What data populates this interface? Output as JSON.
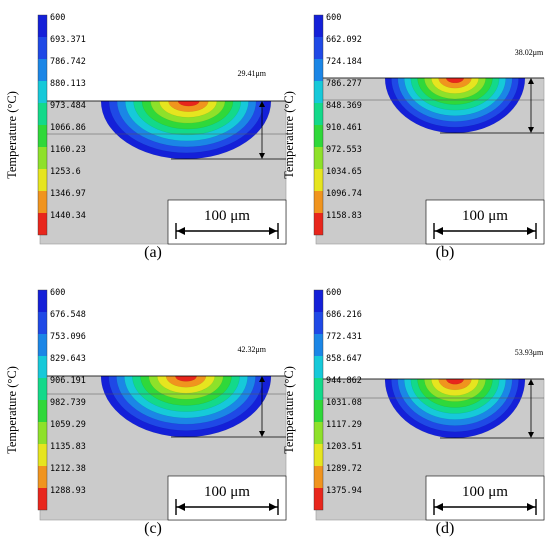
{
  "figure": {
    "background": "#ffffff",
    "substrate_color": "#cbcbcb",
    "contour_colors": [
      "#1420d8",
      "#1f49e6",
      "#1b86e6",
      "#16c9d9",
      "#13d98a",
      "#2fd83a",
      "#8ee12a",
      "#e6e51f",
      "#f0941e",
      "#e8261c"
    ],
    "panels": [
      {
        "id": "a",
        "caption": "(a)",
        "y_label": "Temperature (°C)",
        "legend": [
          "600",
          "693.371",
          "786.742",
          "880.113",
          "973.484",
          "1066.86",
          "1160.23",
          "1253.6",
          "1346.97",
          "1440.34"
        ],
        "depth_label": "29.41μm",
        "depth_um": 29.41,
        "scale_bar_label": "100 μm",
        "scale_bar_um": 100
      },
      {
        "id": "b",
        "caption": "(b)",
        "y_label": "Temperature (°C)",
        "legend": [
          "600",
          "662.092",
          "724.184",
          "786.277",
          "848.369",
          "910.461",
          "972.553",
          "1034.65",
          "1096.74",
          "1158.83"
        ],
        "depth_label": "38.02μm",
        "depth_um": 38.02,
        "scale_bar_label": "100 μm",
        "scale_bar_um": 100
      },
      {
        "id": "c",
        "caption": "(c)",
        "y_label": "Temperature (°C)",
        "legend": [
          "600",
          "676.548",
          "753.096",
          "829.643",
          "906.191",
          "982.739",
          "1059.29",
          "1135.83",
          "1212.38",
          "1288.93"
        ],
        "depth_label": "42.32μm",
        "depth_um": 42.32,
        "scale_bar_label": "100 μm",
        "scale_bar_um": 100
      },
      {
        "id": "d",
        "caption": "(d)",
        "y_label": "Temperature (°C)",
        "legend": [
          "600",
          "686.216",
          "772.431",
          "858.647",
          "944.862",
          "1031.08",
          "1117.29",
          "1203.51",
          "1289.72",
          "1375.94"
        ],
        "depth_label": "53.93μm",
        "depth_um": 53.93,
        "scale_bar_label": "100 μm",
        "scale_bar_um": 100
      }
    ]
  }
}
